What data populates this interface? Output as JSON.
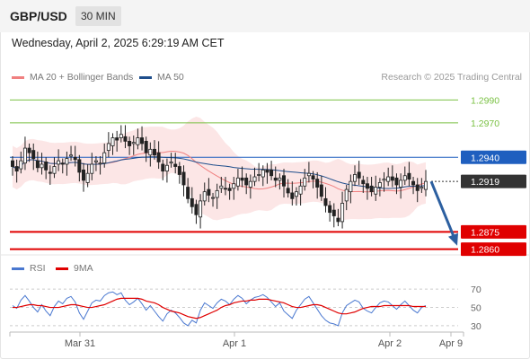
{
  "header": {
    "symbol": "GBP/USD",
    "interval": "30 MIN"
  },
  "datetime": "Wednesday, April 2, 2025 6:29:19 AM CET",
  "copyright": "Research © 2025 Trading Central",
  "colors": {
    "bollinger": "#f08080",
    "ma50": "#1f4e8c",
    "candle": "#222222",
    "support": "#e00000",
    "resistance_green": "#7ac143",
    "resistance_blue": "#1f5fbf",
    "current": "#333333",
    "rsi": "#4a78d0",
    "rsi_ma": "#e00000",
    "arrow": "#2c5fa0"
  },
  "chart_data": [
    {
      "type": "candlestick",
      "legend": [
        {
          "name": "MA 20 + Bollinger Bands",
          "color": "#f08080"
        },
        {
          "name": "MA 50",
          "color": "#1f4e8c"
        }
      ],
      "ylim": [
        1.2855,
        1.3002
      ],
      "levels": [
        {
          "value": 1.299,
          "label": "1.2990",
          "kind": "resistance",
          "color": "#7ac143"
        },
        {
          "value": 1.297,
          "label": "1.2970",
          "kind": "resistance",
          "color": "#7ac143"
        },
        {
          "value": 1.294,
          "label": "1.2940",
          "kind": "pivot",
          "color": "#1f5fbf"
        },
        {
          "value": 1.2919,
          "label": "1.2919",
          "kind": "current",
          "color": "#333333"
        },
        {
          "value": 1.2875,
          "label": "1.2875",
          "kind": "support",
          "color": "#e00000"
        },
        {
          "value": 1.286,
          "label": "1.2860",
          "kind": "support",
          "color": "#e00000"
        }
      ],
      "x_ticks": [
        "Mar 31",
        "Apr 1",
        "Apr 2",
        "Apr 9"
      ],
      "forecast_arrow": {
        "from": 1.2919,
        "to": 1.2863
      },
      "close": [
        1.2932,
        1.2928,
        1.2937,
        1.2948,
        1.2944,
        1.2939,
        1.2931,
        1.2934,
        1.2929,
        1.2926,
        1.2932,
        1.2937,
        1.2934,
        1.2939,
        1.2942,
        1.2938,
        1.2927,
        1.292,
        1.2926,
        1.2934,
        1.2937,
        1.2935,
        1.2944,
        1.2952,
        1.2957,
        1.2955,
        1.296,
        1.2954,
        1.295,
        1.2953,
        1.2957,
        1.2952,
        1.2944,
        1.2947,
        1.2942,
        1.2936,
        1.2928,
        1.2933,
        1.2936,
        1.2932,
        1.2925,
        1.2916,
        1.2904,
        1.2897,
        1.289,
        1.2902,
        1.291,
        1.2907,
        1.2905,
        1.2911,
        1.2915,
        1.2913,
        1.2911,
        1.2917,
        1.2922,
        1.292,
        1.2916,
        1.2919,
        1.2923,
        1.2925,
        1.2929,
        1.2927,
        1.2924,
        1.292,
        1.2922,
        1.2915,
        1.2909,
        1.2904,
        1.291,
        1.2915,
        1.2922,
        1.2926,
        1.2921,
        1.2914,
        1.2906,
        1.2898,
        1.2892,
        1.2889,
        1.2884,
        1.29,
        1.2912,
        1.2919,
        1.2925,
        1.2922,
        1.2917,
        1.2913,
        1.291,
        1.2914,
        1.2918,
        1.2921,
        1.2923,
        1.292,
        1.2916,
        1.292,
        1.2924,
        1.2921,
        1.2916,
        1.2911,
        1.2914,
        1.2919
      ]
    },
    {
      "type": "line",
      "legend": [
        {
          "name": "RSI",
          "color": "#4a78d0"
        },
        {
          "name": "9MA",
          "color": "#e00000"
        }
      ],
      "ylim": [
        25,
        80
      ],
      "y_ticks": [
        70,
        50,
        30
      ],
      "series": [
        {
          "name": "RSI",
          "values": [
            52,
            49,
            58,
            63,
            57,
            50,
            45,
            53,
            46,
            41,
            51,
            57,
            54,
            60,
            62,
            56,
            44,
            37,
            46,
            55,
            58,
            57,
            63,
            66,
            67,
            64,
            66,
            58,
            53,
            56,
            60,
            54,
            47,
            52,
            46,
            40,
            35,
            43,
            47,
            44,
            39,
            33,
            30,
            36,
            33,
            47,
            55,
            52,
            49,
            55,
            59,
            57,
            53,
            59,
            63,
            60,
            54,
            58,
            61,
            62,
            64,
            61,
            56,
            51,
            55,
            46,
            42,
            38,
            47,
            53,
            59,
            62,
            55,
            48,
            41,
            36,
            33,
            32,
            30,
            44,
            52,
            55,
            58,
            56,
            49,
            46,
            44,
            50,
            55,
            57,
            56,
            52,
            48,
            53,
            57,
            52,
            47,
            44,
            50,
            52
          ]
        },
        {
          "name": "9MA",
          "values": [
            50,
            50,
            51,
            52,
            53,
            53,
            52,
            52,
            51,
            50,
            50,
            50,
            51,
            52,
            53,
            53,
            52,
            51,
            50,
            50,
            51,
            52,
            53,
            55,
            57,
            59,
            60,
            60,
            60,
            60,
            60,
            59,
            57,
            56,
            55,
            53,
            50,
            48,
            46,
            45,
            44,
            42,
            40,
            39,
            38,
            39,
            41,
            43,
            45,
            47,
            50,
            52,
            53,
            55,
            56,
            57,
            57,
            58,
            58,
            59,
            59,
            59,
            58,
            57,
            56,
            55,
            53,
            51,
            50,
            50,
            51,
            52,
            53,
            53,
            52,
            50,
            48,
            46,
            44,
            43,
            43,
            44,
            45,
            47,
            49,
            50,
            51,
            51,
            51,
            52,
            52,
            52,
            52,
            52,
            52,
            52,
            51,
            51,
            51,
            51
          ]
        }
      ]
    }
  ]
}
